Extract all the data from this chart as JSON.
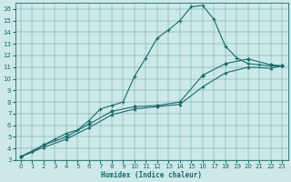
{
  "xlabel": "Humidex (Indice chaleur)",
  "bg_color": "#cce8e8",
  "line_color": "#1a6b6b",
  "xlim": [
    -0.5,
    23.5
  ],
  "ylim": [
    3,
    16.5
  ],
  "xticks": [
    0,
    1,
    2,
    3,
    4,
    5,
    6,
    7,
    8,
    9,
    10,
    11,
    12,
    13,
    14,
    15,
    16,
    17,
    18,
    19,
    20,
    21,
    22,
    23
  ],
  "yticks": [
    3,
    4,
    5,
    6,
    7,
    8,
    9,
    10,
    11,
    12,
    13,
    14,
    15,
    16
  ],
  "line1_x": [
    0,
    1,
    2,
    3,
    4,
    5,
    6,
    7,
    8,
    9,
    10,
    11,
    12,
    13,
    14,
    15,
    16,
    17,
    18,
    19,
    20,
    21,
    22,
    23
  ],
  "line1_y": [
    3.3,
    3.7,
    4.3,
    4.8,
    5.3,
    5.6,
    6.4,
    7.4,
    7.7,
    8.0,
    10.2,
    11.8,
    13.5,
    14.2,
    15.0,
    16.2,
    16.3,
    15.1,
    12.8,
    11.8,
    11.3,
    11.2,
    11.1,
    11.1
  ],
  "line2_x": [
    0,
    2,
    4,
    6,
    8,
    10,
    12,
    14,
    16,
    18,
    20,
    22,
    23
  ],
  "line2_y": [
    3.3,
    4.3,
    5.0,
    6.1,
    7.2,
    7.6,
    7.7,
    8.0,
    10.3,
    11.3,
    11.7,
    11.2,
    11.1
  ],
  "line3_x": [
    0,
    2,
    4,
    6,
    8,
    10,
    12,
    14,
    16,
    18,
    20,
    22,
    23
  ],
  "line3_y": [
    3.3,
    4.1,
    4.8,
    5.8,
    6.9,
    7.4,
    7.6,
    7.8,
    9.3,
    10.5,
    11.0,
    10.9,
    11.1
  ]
}
